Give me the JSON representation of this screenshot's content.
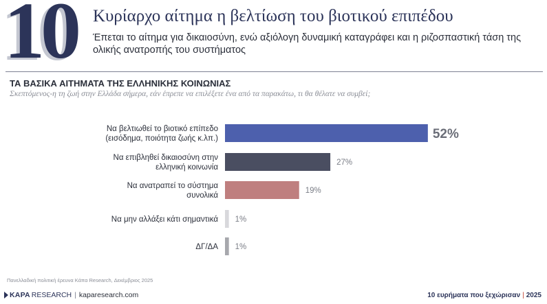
{
  "header": {
    "number": "10",
    "title": "Κυρίαρχο αίτημα η βελτίωση του βιοτικού επιπέδου",
    "subtitle": "Έπεται το αίτημα για δικαιοσύνη, ενώ αξιόλογη δυναμική καταγράφει και η ριζοσπαστική τάση της ολικής ανατροπής του συστήματος"
  },
  "colors": {
    "navy": "#2c3459",
    "bar_1": "#4d60ad",
    "bar_2": "#4a4e61",
    "bar_3": "#bf7f7f",
    "bar_4": "#d8d8dc",
    "bar_5": "#a7a8ad"
  },
  "chart_data": {
    "type": "bar",
    "orientation": "horizontal",
    "title": "ΤΑ ΒΑΣΙΚΑ ΑΙΤΗΜΑΤΑ ΤΗΣ ΕΛΛΗΝΙΚΗΣ ΚΟΙΝΩΝΙΑΣ",
    "subtitle": "Σκεπτόμενος-η τη ζωή στην Ελλάδα σήμερα, εάν έπρεπε να επιλέξετε ένα από τα παρακάτω, τι θα θέλατε να συμβεί;",
    "categories": [
      [
        "Να βελτιωθεί το βιοτικό επίπεδο",
        "(εισόδημα, ποιότητα ζωής κ.λπ.)"
      ],
      [
        "Να επιβληθεί δικαιοσύνη στην",
        "ελληνική κοινωνία"
      ],
      [
        "Να ανατραπεί το σύστημα",
        "συνολικά"
      ],
      [
        "Να μην αλλάξει κάτι σημαντικά"
      ],
      [
        "ΔΓ/ΔΑ"
      ]
    ],
    "values": [
      52,
      27,
      19,
      1,
      1
    ],
    "value_labels": [
      "52%",
      "27%",
      "19%",
      "1%",
      "1%"
    ],
    "unit": "%",
    "xlim": [
      0,
      100
    ],
    "grid": false,
    "legend": "none"
  },
  "footer": {
    "source": "Πανελλαδική πολιτική έρευνα Κάπα Research, Δεκέμβριος 2025",
    "brand_kapa": "KAPA",
    "brand_research": "RESEARCH",
    "brand_sep": "|",
    "website": "kaparesearch.com",
    "series_label": "10 ευρήματα που ξεχώρισαν",
    "series_sep": "|",
    "year": "2025"
  }
}
